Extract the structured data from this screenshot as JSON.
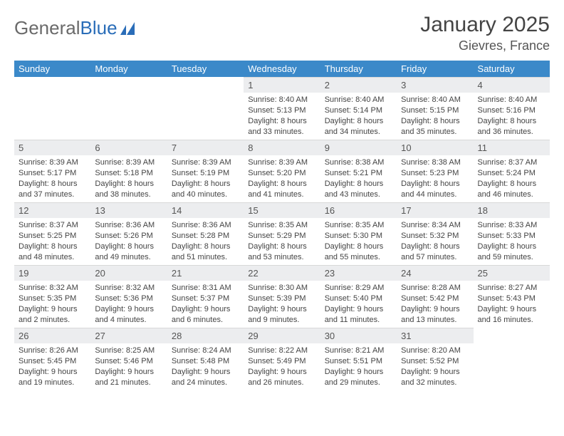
{
  "brand": {
    "part1": "General",
    "part2": "Blue"
  },
  "title": "January 2025",
  "location": "Gievres, France",
  "colors": {
    "header_bg": "#3b89c9",
    "header_text": "#ffffff",
    "daynum_bg": "#ecedef",
    "body_text": "#444444",
    "brand_gray": "#6a6a6a",
    "brand_blue": "#2a6db8"
  },
  "weekdays": [
    "Sunday",
    "Monday",
    "Tuesday",
    "Wednesday",
    "Thursday",
    "Friday",
    "Saturday"
  ],
  "weeks": [
    [
      {
        "n": "",
        "lines": []
      },
      {
        "n": "",
        "lines": []
      },
      {
        "n": "",
        "lines": []
      },
      {
        "n": "1",
        "lines": [
          "Sunrise: 8:40 AM",
          "Sunset: 5:13 PM",
          "Daylight: 8 hours",
          "and 33 minutes."
        ]
      },
      {
        "n": "2",
        "lines": [
          "Sunrise: 8:40 AM",
          "Sunset: 5:14 PM",
          "Daylight: 8 hours",
          "and 34 minutes."
        ]
      },
      {
        "n": "3",
        "lines": [
          "Sunrise: 8:40 AM",
          "Sunset: 5:15 PM",
          "Daylight: 8 hours",
          "and 35 minutes."
        ]
      },
      {
        "n": "4",
        "lines": [
          "Sunrise: 8:40 AM",
          "Sunset: 5:16 PM",
          "Daylight: 8 hours",
          "and 36 minutes."
        ]
      }
    ],
    [
      {
        "n": "5",
        "lines": [
          "Sunrise: 8:39 AM",
          "Sunset: 5:17 PM",
          "Daylight: 8 hours",
          "and 37 minutes."
        ]
      },
      {
        "n": "6",
        "lines": [
          "Sunrise: 8:39 AM",
          "Sunset: 5:18 PM",
          "Daylight: 8 hours",
          "and 38 minutes."
        ]
      },
      {
        "n": "7",
        "lines": [
          "Sunrise: 8:39 AM",
          "Sunset: 5:19 PM",
          "Daylight: 8 hours",
          "and 40 minutes."
        ]
      },
      {
        "n": "8",
        "lines": [
          "Sunrise: 8:39 AM",
          "Sunset: 5:20 PM",
          "Daylight: 8 hours",
          "and 41 minutes."
        ]
      },
      {
        "n": "9",
        "lines": [
          "Sunrise: 8:38 AM",
          "Sunset: 5:21 PM",
          "Daylight: 8 hours",
          "and 43 minutes."
        ]
      },
      {
        "n": "10",
        "lines": [
          "Sunrise: 8:38 AM",
          "Sunset: 5:23 PM",
          "Daylight: 8 hours",
          "and 44 minutes."
        ]
      },
      {
        "n": "11",
        "lines": [
          "Sunrise: 8:37 AM",
          "Sunset: 5:24 PM",
          "Daylight: 8 hours",
          "and 46 minutes."
        ]
      }
    ],
    [
      {
        "n": "12",
        "lines": [
          "Sunrise: 8:37 AM",
          "Sunset: 5:25 PM",
          "Daylight: 8 hours",
          "and 48 minutes."
        ]
      },
      {
        "n": "13",
        "lines": [
          "Sunrise: 8:36 AM",
          "Sunset: 5:26 PM",
          "Daylight: 8 hours",
          "and 49 minutes."
        ]
      },
      {
        "n": "14",
        "lines": [
          "Sunrise: 8:36 AM",
          "Sunset: 5:28 PM",
          "Daylight: 8 hours",
          "and 51 minutes."
        ]
      },
      {
        "n": "15",
        "lines": [
          "Sunrise: 8:35 AM",
          "Sunset: 5:29 PM",
          "Daylight: 8 hours",
          "and 53 minutes."
        ]
      },
      {
        "n": "16",
        "lines": [
          "Sunrise: 8:35 AM",
          "Sunset: 5:30 PM",
          "Daylight: 8 hours",
          "and 55 minutes."
        ]
      },
      {
        "n": "17",
        "lines": [
          "Sunrise: 8:34 AM",
          "Sunset: 5:32 PM",
          "Daylight: 8 hours",
          "and 57 minutes."
        ]
      },
      {
        "n": "18",
        "lines": [
          "Sunrise: 8:33 AM",
          "Sunset: 5:33 PM",
          "Daylight: 8 hours",
          "and 59 minutes."
        ]
      }
    ],
    [
      {
        "n": "19",
        "lines": [
          "Sunrise: 8:32 AM",
          "Sunset: 5:35 PM",
          "Daylight: 9 hours",
          "and 2 minutes."
        ]
      },
      {
        "n": "20",
        "lines": [
          "Sunrise: 8:32 AM",
          "Sunset: 5:36 PM",
          "Daylight: 9 hours",
          "and 4 minutes."
        ]
      },
      {
        "n": "21",
        "lines": [
          "Sunrise: 8:31 AM",
          "Sunset: 5:37 PM",
          "Daylight: 9 hours",
          "and 6 minutes."
        ]
      },
      {
        "n": "22",
        "lines": [
          "Sunrise: 8:30 AM",
          "Sunset: 5:39 PM",
          "Daylight: 9 hours",
          "and 9 minutes."
        ]
      },
      {
        "n": "23",
        "lines": [
          "Sunrise: 8:29 AM",
          "Sunset: 5:40 PM",
          "Daylight: 9 hours",
          "and 11 minutes."
        ]
      },
      {
        "n": "24",
        "lines": [
          "Sunrise: 8:28 AM",
          "Sunset: 5:42 PM",
          "Daylight: 9 hours",
          "and 13 minutes."
        ]
      },
      {
        "n": "25",
        "lines": [
          "Sunrise: 8:27 AM",
          "Sunset: 5:43 PM",
          "Daylight: 9 hours",
          "and 16 minutes."
        ]
      }
    ],
    [
      {
        "n": "26",
        "lines": [
          "Sunrise: 8:26 AM",
          "Sunset: 5:45 PM",
          "Daylight: 9 hours",
          "and 19 minutes."
        ]
      },
      {
        "n": "27",
        "lines": [
          "Sunrise: 8:25 AM",
          "Sunset: 5:46 PM",
          "Daylight: 9 hours",
          "and 21 minutes."
        ]
      },
      {
        "n": "28",
        "lines": [
          "Sunrise: 8:24 AM",
          "Sunset: 5:48 PM",
          "Daylight: 9 hours",
          "and 24 minutes."
        ]
      },
      {
        "n": "29",
        "lines": [
          "Sunrise: 8:22 AM",
          "Sunset: 5:49 PM",
          "Daylight: 9 hours",
          "and 26 minutes."
        ]
      },
      {
        "n": "30",
        "lines": [
          "Sunrise: 8:21 AM",
          "Sunset: 5:51 PM",
          "Daylight: 9 hours",
          "and 29 minutes."
        ]
      },
      {
        "n": "31",
        "lines": [
          "Sunrise: 8:20 AM",
          "Sunset: 5:52 PM",
          "Daylight: 9 hours",
          "and 32 minutes."
        ]
      },
      {
        "n": "",
        "lines": []
      }
    ]
  ]
}
